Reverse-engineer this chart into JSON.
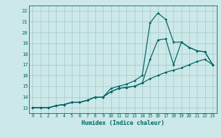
{
  "title": "",
  "xlabel": "Humidex (Indice chaleur)",
  "ylabel": "",
  "xlim": [
    -0.5,
    23.5
  ],
  "ylim": [
    12.5,
    22.5
  ],
  "yticks": [
    13,
    14,
    15,
    16,
    17,
    18,
    19,
    20,
    21,
    22
  ],
  "xticks": [
    0,
    1,
    2,
    3,
    4,
    5,
    6,
    7,
    8,
    9,
    10,
    11,
    12,
    13,
    14,
    15,
    16,
    17,
    18,
    19,
    20,
    21,
    22,
    23
  ],
  "bg_color": "#cce8e8",
  "grid_color": "#aacccc",
  "line_color": "#006666",
  "line1_x": [
    0,
    1,
    2,
    3,
    4,
    5,
    6,
    7,
    8,
    9,
    10,
    11,
    12,
    13,
    14,
    15,
    16,
    17,
    18,
    19,
    20,
    21,
    22,
    23
  ],
  "line1_y": [
    13,
    13,
    13,
    13.2,
    13.3,
    13.5,
    13.5,
    13.7,
    14.0,
    14.0,
    14.5,
    14.8,
    14.9,
    15.0,
    15.3,
    17.5,
    19.3,
    19.4,
    17.0,
    19.1,
    18.6,
    18.3,
    18.2,
    17.0
  ],
  "line2_x": [
    0,
    1,
    2,
    3,
    4,
    5,
    6,
    7,
    8,
    9,
    10,
    11,
    12,
    13,
    14,
    15,
    16,
    17,
    18,
    19,
    20,
    21,
    22,
    23
  ],
  "line2_y": [
    13,
    13,
    13,
    13.2,
    13.3,
    13.5,
    13.5,
    13.7,
    14.0,
    14.0,
    14.8,
    15.0,
    15.2,
    15.5,
    16.0,
    20.9,
    21.8,
    21.2,
    19.1,
    19.1,
    18.6,
    18.3,
    18.2,
    17.0
  ],
  "line3_x": [
    0,
    1,
    2,
    3,
    4,
    5,
    6,
    7,
    8,
    9,
    10,
    11,
    12,
    13,
    14,
    15,
    16,
    17,
    18,
    19,
    20,
    21,
    22,
    23
  ],
  "line3_y": [
    13,
    13,
    13,
    13.2,
    13.3,
    13.5,
    13.5,
    13.7,
    14.0,
    14.0,
    14.5,
    14.8,
    14.9,
    15.0,
    15.3,
    15.7,
    16.0,
    16.3,
    16.5,
    16.7,
    17.0,
    17.3,
    17.5,
    17.0
  ]
}
